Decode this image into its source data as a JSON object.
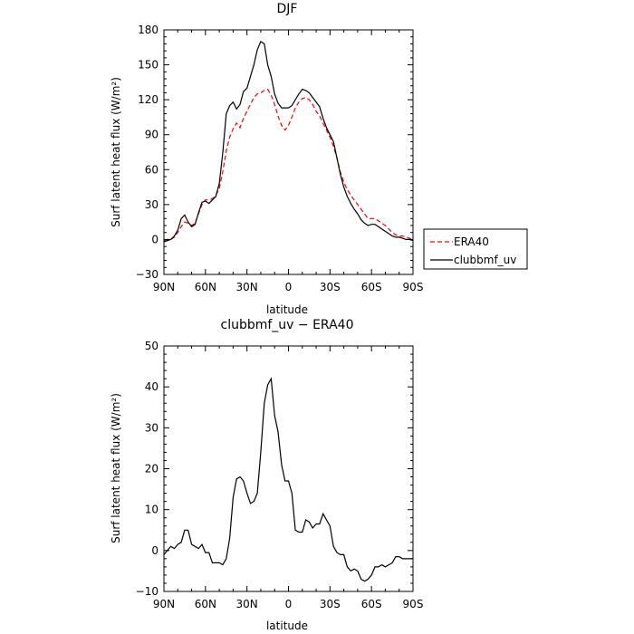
{
  "chart_data": [
    {
      "type": "line",
      "title": "DJF",
      "xlabel": "latitude",
      "ylabel": "Surf latent heat flux (W/m²)",
      "xlim": [
        90,
        -90
      ],
      "ylim": [
        -30,
        180
      ],
      "xticks": [
        90,
        60,
        30,
        0,
        -30,
        -60,
        -90
      ],
      "xtick_labels": [
        "90N",
        "60N",
        "30N",
        "0",
        "30S",
        "60S",
        "90S"
      ],
      "yticks": [
        -30,
        0,
        30,
        60,
        90,
        120,
        150,
        180
      ],
      "ytick_labels": [
        "−30",
        "0",
        "30",
        "60",
        "90",
        "120",
        "150",
        "180"
      ],
      "legend": {
        "placement": "right-outside"
      },
      "series": [
        {
          "name": "ERA40",
          "color": "#ff0000",
          "dash": true,
          "x": [
            90,
            87.5,
            85,
            82.5,
            80,
            77.5,
            75,
            72.5,
            70,
            67.5,
            65,
            62.5,
            60,
            57.5,
            55,
            52.5,
            50,
            47.5,
            45,
            42.5,
            40,
            37.5,
            35,
            32.5,
            30,
            27.5,
            25,
            22.5,
            20,
            17.5,
            15,
            12.5,
            10,
            7.5,
            5,
            2.5,
            0,
            -2.5,
            -5,
            -7.5,
            -10,
            -12.5,
            -15,
            -17.5,
            -20,
            -22.5,
            -25,
            -27.5,
            -30,
            -32.5,
            -35,
            -37.5,
            -40,
            -42.5,
            -45,
            -47.5,
            -50,
            -52.5,
            -55,
            -57.5,
            -60,
            -62.5,
            -65,
            -67.5,
            -70,
            -72.5,
            -75,
            -77.5,
            -80,
            -82.5,
            -85,
            -87.5,
            -90
          ],
          "y": [
            -1,
            0,
            0,
            2,
            6,
            11,
            15,
            14,
            12,
            14,
            22,
            30,
            34,
            34,
            35,
            38,
            44,
            58,
            76,
            88,
            95,
            100,
            96,
            104,
            110,
            116,
            122,
            125,
            126,
            128,
            129,
            124,
            116,
            106,
            98,
            94,
            98,
            105,
            113,
            118,
            121,
            122,
            120,
            116,
            110,
            106,
            100,
            94,
            88,
            80,
            70,
            58,
            49,
            43,
            38,
            34,
            30,
            26,
            22,
            18,
            18,
            18,
            16,
            14,
            12,
            9,
            6,
            4,
            3,
            3,
            2,
            1,
            0
          ]
        },
        {
          "name": "clubbmf_uv",
          "color": "#000000",
          "dash": false,
          "x": [
            90,
            87.5,
            85,
            82.5,
            80,
            77.5,
            75,
            72.5,
            70,
            67.5,
            65,
            62.5,
            60,
            57.5,
            55,
            52.5,
            50,
            47.5,
            45,
            42.5,
            40,
            37.5,
            35,
            32.5,
            30,
            27.5,
            25,
            22.5,
            20,
            17.5,
            15,
            12.5,
            10,
            7.5,
            5,
            2.5,
            0,
            -2.5,
            -5,
            -7.5,
            -10,
            -12.5,
            -15,
            -17.5,
            -20,
            -22.5,
            -25,
            -27.5,
            -30,
            -32.5,
            -35,
            -37.5,
            -40,
            -42.5,
            -45,
            -47.5,
            -50,
            -52.5,
            -55,
            -57.5,
            -60,
            -62.5,
            -65,
            -67.5,
            -70,
            -72.5,
            -75,
            -77.5,
            -80,
            -82.5,
            -85,
            -87.5,
            -90
          ],
          "y": [
            -2,
            -1,
            0,
            3,
            8,
            18,
            21,
            15,
            11,
            13,
            23,
            32,
            33,
            31,
            34,
            37,
            48,
            74,
            108,
            115,
            118,
            112,
            116,
            127,
            130,
            140,
            150,
            163,
            170,
            168,
            150,
            140,
            125,
            117,
            113,
            113,
            113,
            115,
            120,
            125,
            129,
            128,
            126,
            122,
            118,
            114,
            104,
            96,
            90,
            84,
            70,
            56,
            45,
            37,
            31,
            26,
            22,
            17,
            14,
            12,
            13,
            13,
            11,
            9,
            7,
            5,
            3,
            2,
            2,
            1,
            0,
            0,
            -1
          ]
        }
      ]
    },
    {
      "type": "line",
      "title": "clubbmf_uv − ERA40",
      "xlabel": "latitude",
      "ylabel": "Surf latent heat flux (W/m²)",
      "xlim": [
        90,
        -90
      ],
      "ylim": [
        -10,
        50
      ],
      "xticks": [
        90,
        60,
        30,
        0,
        -30,
        -60,
        -90
      ],
      "xtick_labels": [
        "90N",
        "60N",
        "30N",
        "0",
        "30S",
        "60S",
        "90S"
      ],
      "yticks": [
        -10,
        0,
        10,
        20,
        30,
        40,
        50
      ],
      "ytick_labels": [
        "−10",
        "0",
        "10",
        "20",
        "30",
        "40",
        "50"
      ],
      "series": [
        {
          "color": "#000000",
          "dash": false,
          "x": [
            90,
            87.5,
            85,
            82.5,
            80,
            77.5,
            75,
            72.5,
            70,
            67.5,
            65,
            62.5,
            60,
            57.5,
            55,
            52.5,
            50,
            47.5,
            45,
            42.5,
            40,
            37.5,
            35,
            32.5,
            30,
            27.5,
            25,
            22.5,
            20,
            17.5,
            15,
            12.5,
            10,
            7.5,
            5,
            2.5,
            0,
            -2.5,
            -5,
            -7.5,
            -10,
            -12.5,
            -15,
            -17.5,
            -20,
            -22.5,
            -25,
            -27.5,
            -30,
            -32.5,
            -35,
            -37.5,
            -40,
            -42.5,
            -45,
            -47.5,
            -50,
            -52.5,
            -55,
            -57.5,
            -60,
            -62.5,
            -65,
            -67.5,
            -70,
            -72.5,
            -75,
            -77.5,
            -80,
            -82.5,
            -85,
            -87.5,
            -90
          ],
          "y": [
            -1,
            0,
            1,
            0.5,
            1.5,
            2,
            5,
            5,
            1.5,
            1,
            0.5,
            1.5,
            -0.5,
            -0.5,
            -3,
            -3,
            -3,
            -3.5,
            -2,
            3,
            13,
            17.5,
            18,
            17,
            14,
            11.5,
            12,
            14,
            24,
            36,
            40.5,
            42,
            33,
            29,
            21,
            17,
            17,
            14,
            5,
            4.5,
            4.5,
            7.5,
            7,
            5.5,
            6.5,
            6.5,
            9,
            7.5,
            6,
            1,
            -0.5,
            -1,
            -1,
            -4,
            -5,
            -4.5,
            -5,
            -7,
            -7.5,
            -7,
            -6,
            -4,
            -4,
            -3.5,
            -4,
            -3.5,
            -3,
            -1.5,
            -1.5,
            -2,
            -2,
            -2,
            -2
          ]
        }
      ]
    }
  ]
}
